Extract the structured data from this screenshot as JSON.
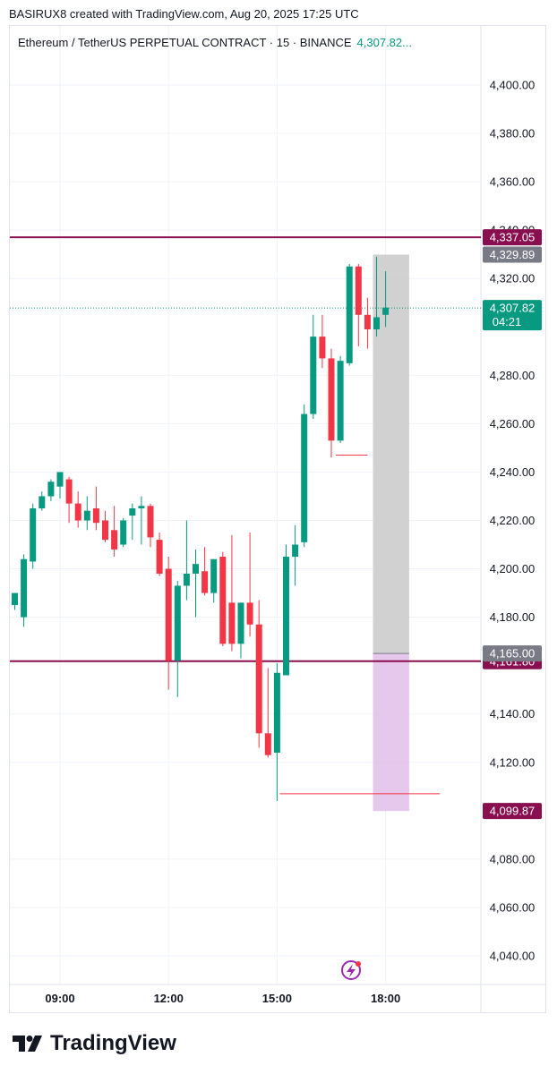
{
  "header": {
    "credit": "BASIRUX8 created with TradingView.com, Aug 20, 2025 17:25 UTC"
  },
  "legend": {
    "symbol": "Ethereum / TetherUS PERPETUAL CONTRACT · 15 · BINANCE",
    "price": "4,307.82..."
  },
  "footer": {
    "brand": "TradingView"
  },
  "colors": {
    "up": "#089981",
    "down": "#f23645",
    "level": "#880e4f",
    "zone_top": "#d1d4dc",
    "zone_bottom": "#e1bee7"
  },
  "chart_data": {
    "type": "candlestick",
    "ylim": [
      4030,
      4410
    ],
    "y_ticks": [
      4400,
      4380,
      4360,
      4340,
      4320,
      4280,
      4260,
      4240,
      4220,
      4200,
      4180,
      4140,
      4120,
      4080,
      4060,
      4040
    ],
    "y_tick_labels": [
      "4,400.00",
      "4,380.00",
      "4,360.00",
      "4,340.00",
      "4,320.00",
      "4,280.00",
      "4,260.00",
      "4,240.00",
      "4,220.00",
      "4,200.00",
      "4,180.00",
      "4,140.00",
      "4,120.00",
      "4,080.00",
      "4,060.00",
      "4,040.00"
    ],
    "x_ticks": [
      "09:00",
      "12:00",
      "15:00",
      "18:00"
    ],
    "x_tick_slots": [
      5,
      17,
      29,
      41
    ],
    "candles": [
      {
        "o": 4185,
        "h": 4190,
        "l": 4183,
        "c": 4190
      },
      {
        "o": 4180,
        "h": 4206,
        "l": 4176,
        "c": 4204
      },
      {
        "o": 4203,
        "h": 4227,
        "l": 4200,
        "c": 4225
      },
      {
        "o": 4225,
        "h": 4232,
        "l": 4224,
        "c": 4230
      },
      {
        "o": 4230,
        "h": 4237,
        "l": 4228,
        "c": 4236
      },
      {
        "o": 4234,
        "h": 4240,
        "l": 4229,
        "c": 4240
      },
      {
        "o": 4237,
        "h": 4238,
        "l": 4219,
        "c": 4227
      },
      {
        "o": 4227,
        "h": 4232,
        "l": 4217,
        "c": 4220
      },
      {
        "o": 4220,
        "h": 4230,
        "l": 4216,
        "c": 4224
      },
      {
        "o": 4225,
        "h": 4234,
        "l": 4216,
        "c": 4219
      },
      {
        "o": 4220,
        "h": 4224,
        "l": 4211,
        "c": 4212
      },
      {
        "o": 4216,
        "h": 4226,
        "l": 4205,
        "c": 4208
      },
      {
        "o": 4210,
        "h": 4221,
        "l": 4209,
        "c": 4220
      },
      {
        "o": 4222,
        "h": 4227,
        "l": 4212,
        "c": 4225
      },
      {
        "o": 4225,
        "h": 4230,
        "l": 4210,
        "c": 4226
      },
      {
        "o": 4226,
        "h": 4227,
        "l": 4209,
        "c": 4213
      },
      {
        "o": 4212,
        "h": 4215,
        "l": 4197,
        "c": 4198
      },
      {
        "o": 4200,
        "h": 4205,
        "l": 4150,
        "c": 4162
      },
      {
        "o": 4162,
        "h": 4195,
        "l": 4147,
        "c": 4193
      },
      {
        "o": 4193,
        "h": 4220,
        "l": 4187,
        "c": 4198
      },
      {
        "o": 4198,
        "h": 4208,
        "l": 4180,
        "c": 4202
      },
      {
        "o": 4199,
        "h": 4209,
        "l": 4189,
        "c": 4190
      },
      {
        "o": 4190,
        "h": 4204,
        "l": 4186,
        "c": 4204
      },
      {
        "o": 4205,
        "h": 4207,
        "l": 4168,
        "c": 4169
      },
      {
        "o": 4186,
        "h": 4214,
        "l": 4166,
        "c": 4169
      },
      {
        "o": 4169,
        "h": 4186,
        "l": 4163,
        "c": 4186
      },
      {
        "o": 4186,
        "h": 4215,
        "l": 4172,
        "c": 4177
      },
      {
        "o": 4177,
        "h": 4187,
        "l": 4126,
        "c": 4132
      },
      {
        "o": 4132,
        "h": 4159,
        "l": 4122,
        "c": 4123
      },
      {
        "o": 4124,
        "h": 4161,
        "l": 4104,
        "c": 4157
      },
      {
        "o": 4156,
        "h": 4210,
        "l": 4156,
        "c": 4205
      },
      {
        "o": 4205,
        "h": 4218,
        "l": 4193,
        "c": 4210
      },
      {
        "o": 4211,
        "h": 4268,
        "l": 4209,
        "c": 4264
      },
      {
        "o": 4264,
        "h": 4305,
        "l": 4262,
        "c": 4296
      },
      {
        "o": 4296,
        "h": 4305,
        "l": 4283,
        "c": 4287
      },
      {
        "o": 4287,
        "h": 4291,
        "l": 4246,
        "c": 4253
      },
      {
        "o": 4253,
        "h": 4288,
        "l": 4252,
        "c": 4286
      },
      {
        "o": 4285,
        "h": 4326,
        "l": 4284,
        "c": 4325
      },
      {
        "o": 4325,
        "h": 4326,
        "l": 4292,
        "c": 4305
      },
      {
        "o": 4305,
        "h": 4312,
        "l": 4291,
        "c": 4299
      },
      {
        "o": 4299,
        "h": 4329,
        "l": 4296,
        "c": 4304
      },
      {
        "o": 4305,
        "h": 4323,
        "l": 4300,
        "c": 4308
      }
    ],
    "levels": [
      {
        "name": "resistance",
        "value": 4337.05,
        "label": "4,337.05"
      },
      {
        "name": "support",
        "value": 4161.8,
        "label": "4,161.80"
      }
    ],
    "price_labels": [
      {
        "value": 4329.89,
        "label": "4,329.89",
        "kind": "grey"
      },
      {
        "value": 4307.82,
        "label": "4,307.82",
        "sub": "04:21",
        "kind": "last"
      },
      {
        "value": 4165.0,
        "label": "4,165.00",
        "kind": "grey"
      },
      {
        "value": 4099.87,
        "label": "4,099.87",
        "kind": "level"
      }
    ],
    "position": {
      "target": 4329.89,
      "entry": 4165.0,
      "stop": 4099.87,
      "from_slot": 40,
      "to_slot": 44
    },
    "marker_lines": [
      {
        "value": 4247,
        "from_slot": 35.5,
        "to_slot": 39
      },
      {
        "value": 4107,
        "from_slot": 29.3,
        "to_slot": 47
      }
    ],
    "last_price": 4307.82
  }
}
